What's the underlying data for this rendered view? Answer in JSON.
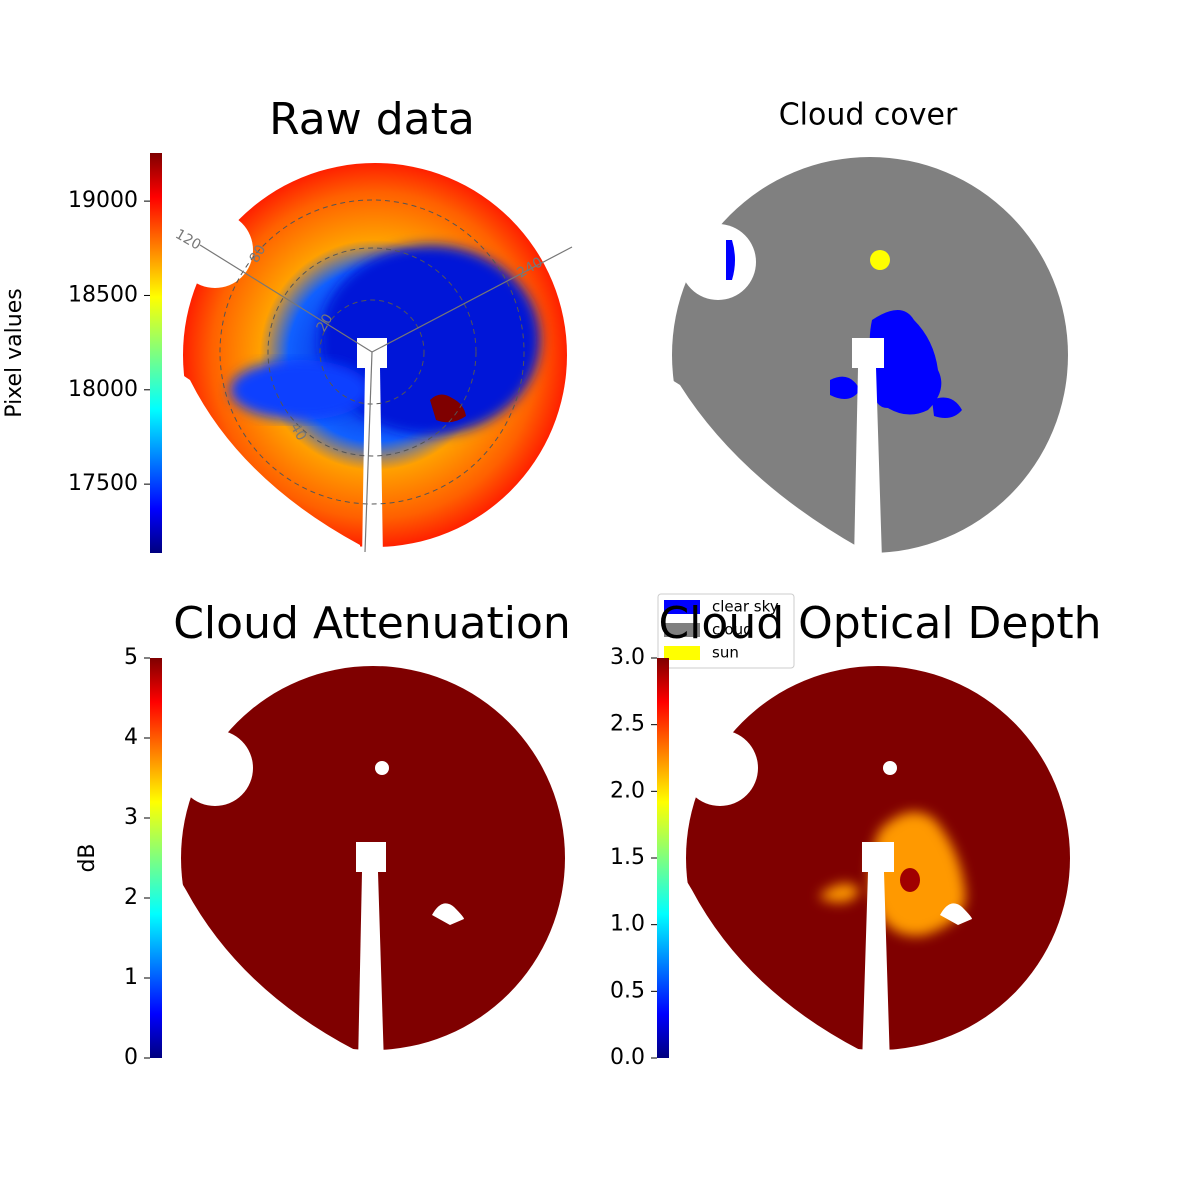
{
  "chart_data": [
    {
      "type": "image",
      "title": "Raw data",
      "colorbar_label": "Pixel values",
      "clim": [
        17135,
        19255
      ],
      "cticks": [
        17500,
        18000,
        18500,
        19000
      ],
      "polar_labels": [
        "120",
        "80",
        "240",
        "20",
        "40"
      ]
    },
    {
      "type": "image",
      "title": "Cloud cover",
      "legend": [
        {
          "name": "clear sky",
          "color": "#0000ff"
        },
        {
          "name": "cloud",
          "color": "#808080"
        },
        {
          "name": "sun",
          "color": "#ffff00"
        }
      ]
    },
    {
      "type": "image",
      "title": "Cloud Attenuation",
      "colorbar_label": "dB",
      "clim": [
        0,
        5
      ],
      "cticks": [
        0,
        1,
        2,
        3,
        4,
        5
      ]
    },
    {
      "type": "image",
      "title": "Cloud Optical Depth",
      "clim": [
        0,
        3
      ],
      "cticks": [
        {
          "value": 0,
          "label": "0.0"
        },
        {
          "value": 0.5,
          "label": "0.5"
        },
        {
          "value": 1,
          "label": "1.0"
        },
        {
          "value": 1.5,
          "label": "1.5"
        },
        {
          "value": 2,
          "label": "2.0"
        },
        {
          "value": 2.5,
          "label": "2.5"
        },
        {
          "value": 3,
          "label": "3.0"
        }
      ]
    }
  ]
}
